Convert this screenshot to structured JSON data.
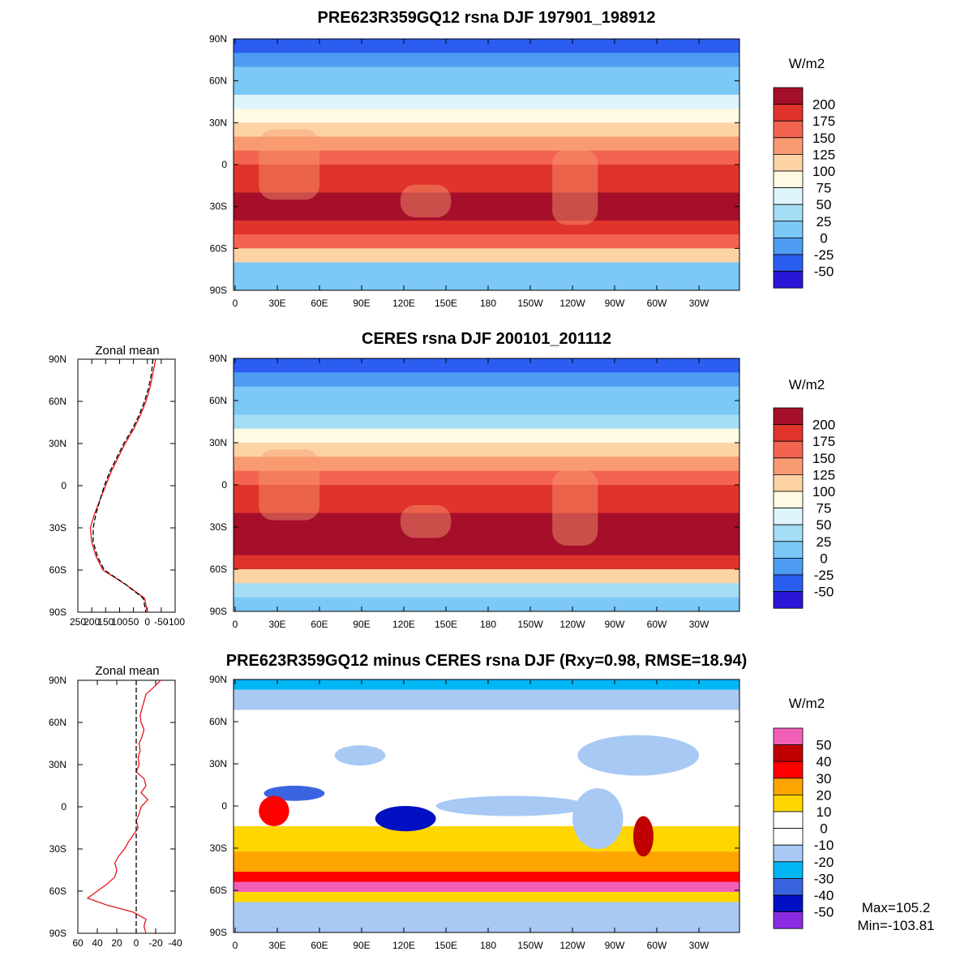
{
  "chart_data": [
    {
      "type": "heatmap",
      "title": "PRE623R359GQ12 rsna DJF 197901_198912",
      "x_ticks": [
        "0",
        "30E",
        "60E",
        "90E",
        "120E",
        "150E",
        "180",
        "150W",
        "120W",
        "90W",
        "60W",
        "30W"
      ],
      "y_ticks": [
        "90N",
        "60N",
        "30N",
        "0",
        "30S",
        "60S",
        "90S"
      ],
      "colorbar": {
        "unit": "W/m2",
        "levels": [
          "200",
          "175",
          "150",
          "125",
          "100",
          "75",
          "50",
          "25",
          "0",
          "-25",
          "-50"
        ],
        "colors": [
          "#a50f2a",
          "#e0332c",
          "#f36450",
          "#f99b72",
          "#fdd3a6",
          "#fffbe2",
          "#dff5fd",
          "#a5dcf6",
          "#7cc8f7",
          "#4d9cf2",
          "#2b5df0",
          "#2a16d6"
        ]
      },
      "zonal_mean_bands": [
        {
          "lat": 85,
          "value": -30
        },
        {
          "lat": 75,
          "value": -20
        },
        {
          "lat": 65,
          "value": 5
        },
        {
          "lat": 55,
          "value": 20
        },
        {
          "lat": 45,
          "value": 50
        },
        {
          "lat": 35,
          "value": 80
        },
        {
          "lat": 25,
          "value": 110
        },
        {
          "lat": 15,
          "value": 140
        },
        {
          "lat": 5,
          "value": 160
        },
        {
          "lat": -5,
          "value": 175
        },
        {
          "lat": -15,
          "value": 190
        },
        {
          "lat": -25,
          "value": 205
        },
        {
          "lat": -35,
          "value": 210
        },
        {
          "lat": -45,
          "value": 195
        },
        {
          "lat": -55,
          "value": 170
        },
        {
          "lat": -65,
          "value": 100
        },
        {
          "lat": -75,
          "value": 20
        },
        {
          "lat": -85,
          "value": 0
        }
      ]
    },
    {
      "type": "heatmap",
      "title": "CERES rsna DJF 200101_201112",
      "x_ticks": [
        "0",
        "30E",
        "60E",
        "90E",
        "120E",
        "150E",
        "180",
        "150W",
        "120W",
        "90W",
        "60W",
        "30W"
      ],
      "y_ticks": [
        "90N",
        "60N",
        "30N",
        "0",
        "30S",
        "60S",
        "90S"
      ],
      "colorbar": {
        "unit": "W/m2",
        "levels": [
          "200",
          "175",
          "150",
          "125",
          "100",
          "75",
          "50",
          "25",
          "0",
          "-25",
          "-50"
        ],
        "colors": [
          "#a50f2a",
          "#e0332c",
          "#f36450",
          "#f99b72",
          "#fdd3a6",
          "#fffbe2",
          "#dff5fd",
          "#a5dcf6",
          "#7cc8f7",
          "#4d9cf2",
          "#2b5df0",
          "#2a16d6"
        ]
      },
      "zonal_mean": {
        "title": "Zonal mean",
        "x_ticks": [
          "250",
          "200",
          "150",
          "100",
          "50",
          "0",
          "-50",
          "-100"
        ],
        "y_ticks": [
          "90N",
          "60N",
          "30N",
          "0",
          "30S",
          "60S",
          "90S"
        ],
        "xlim": [
          250,
          -100
        ],
        "series": [
          {
            "color": "#e8141b",
            "dashed": false,
            "lat": [
              90,
              80,
              70,
              60,
              50,
              40,
              30,
              20,
              10,
              0,
              -10,
              -20,
              -30,
              -40,
              -50,
              -60,
              -70,
              -80,
              -90
            ],
            "values": [
              -30,
              -20,
              -10,
              5,
              25,
              50,
              80,
              105,
              130,
              150,
              170,
              190,
              205,
              200,
              185,
              160,
              80,
              10,
              0
            ]
          },
          {
            "color": "#000000",
            "dashed": true,
            "lat": [
              90,
              80,
              70,
              60,
              50,
              40,
              30,
              20,
              10,
              0,
              -10,
              -20,
              -30,
              -40,
              -50,
              -60,
              -70,
              -80,
              -90
            ],
            "values": [
              -20,
              -15,
              -5,
              10,
              30,
              55,
              85,
              110,
              135,
              155,
              170,
              185,
              195,
              195,
              180,
              155,
              80,
              15,
              5
            ]
          }
        ]
      }
    },
    {
      "type": "heatmap",
      "title": "PRE623R359GQ12 minus CERES rsna DJF (Rxy=0.98, RMSE=18.94)",
      "x_ticks": [
        "0",
        "30E",
        "60E",
        "90E",
        "120E",
        "150E",
        "180",
        "150W",
        "120W",
        "90W",
        "60W",
        "30W"
      ],
      "y_ticks": [
        "90N",
        "60N",
        "30N",
        "0",
        "30S",
        "60S",
        "90S"
      ],
      "colorbar": {
        "unit": "W/m2",
        "levels": [
          "50",
          "40",
          "30",
          "20",
          "10",
          "0",
          "-10",
          "-20",
          "-30",
          "-40",
          "-50"
        ],
        "colors": [
          "#f25fb8",
          "#c00000",
          "#ff0000",
          "#ffa500",
          "#ffd700",
          "#ffffff",
          "#ffffff",
          "#a7c9f4",
          "#00b6f5",
          "#3a63e0",
          "#0010c2",
          "#8a2be2"
        ]
      },
      "zonal_mean": {
        "title": "Zonal mean",
        "x_ticks": [
          "60",
          "40",
          "20",
          "0",
          "-20",
          "-40"
        ],
        "y_ticks": [
          "90N",
          "60N",
          "30N",
          "0",
          "30S",
          "60S",
          "90S"
        ],
        "xlim": [
          60,
          -40
        ],
        "series": [
          {
            "color": "#e8141b",
            "dashed": false,
            "lat": [
              90,
              85,
              80,
              75,
              70,
              65,
              60,
              55,
              50,
              45,
              40,
              35,
              30,
              25,
              20,
              15,
              10,
              5,
              0,
              -5,
              -10,
              -15,
              -20,
              -25,
              -30,
              -35,
              -40,
              -45,
              -50,
              -55,
              -60,
              -65,
              -70,
              -75,
              -80,
              -85,
              -90
            ],
            "values": [
              -25,
              -18,
              -10,
              -8,
              -6,
              -4,
              -5,
              -8,
              -6,
              -3,
              -4,
              -2,
              -3,
              0,
              -8,
              -10,
              -5,
              -12,
              -5,
              -3,
              0,
              -2,
              3,
              8,
              12,
              18,
              22,
              20,
              22,
              30,
              40,
              50,
              30,
              3,
              -10,
              -8,
              -10
            ]
          },
          {
            "color": "#000000",
            "dashed": true,
            "lat": [
              90,
              -90
            ],
            "values": [
              0,
              0
            ]
          }
        ]
      },
      "stats": {
        "max": "Max=105.2",
        "min": "Min=-103.81"
      }
    }
  ]
}
